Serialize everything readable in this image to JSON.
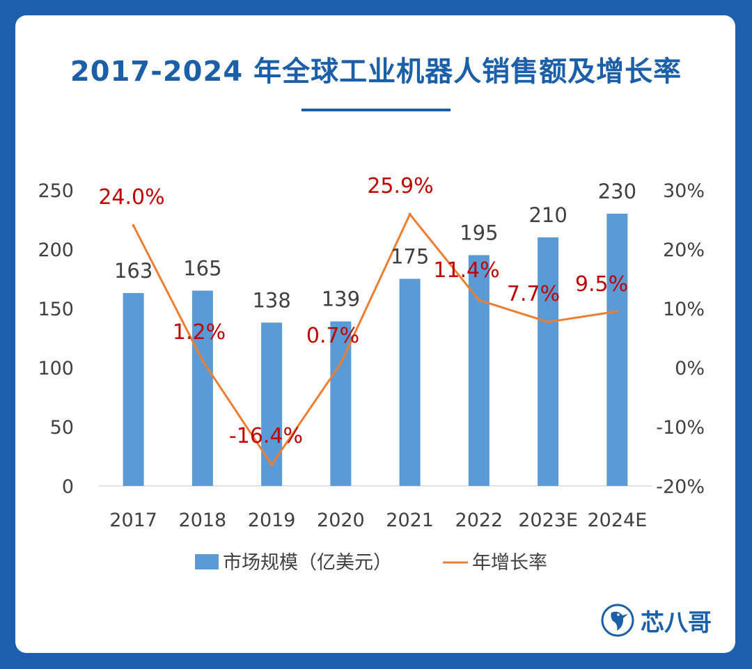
{
  "title": "2017-2024 年全球工业机器人销售额及增长率",
  "brand": {
    "name": "芯八哥",
    "logo_icon": "kingfisher-bird-icon"
  },
  "colors": {
    "bar": "#5b9bd5",
    "line": "#ed7d31",
    "growth_label": "#c00000",
    "title": "#1a5fa8",
    "axis_text": "#404040"
  },
  "chart_data": {
    "type": "bar+line",
    "categories": [
      "2017",
      "2018",
      "2019",
      "2020",
      "2021",
      "2022",
      "2023E",
      "2024E"
    ],
    "series": [
      {
        "name": "市场规模（亿美元）",
        "type": "bar",
        "axis": "left",
        "values": [
          163,
          165,
          138,
          139,
          175,
          195,
          210,
          230
        ],
        "labels": [
          "163",
          "165",
          "138",
          "139",
          "175",
          "195",
          "210",
          "230"
        ]
      },
      {
        "name": "年增长率",
        "type": "line",
        "axis": "right",
        "values": [
          24.0,
          1.2,
          -16.4,
          0.7,
          25.9,
          11.4,
          7.7,
          9.5
        ],
        "labels": [
          "24.0%",
          "1.2%",
          "-16.4%",
          "0.7%",
          "25.9%",
          "11.4%",
          "7.7%",
          "9.5%"
        ]
      }
    ],
    "y_left": {
      "min": 0,
      "max": 250,
      "ticks": [
        0,
        50,
        100,
        150,
        200,
        250
      ],
      "tick_labels": [
        "0",
        "50",
        "100",
        "150",
        "200",
        "250"
      ]
    },
    "y_right": {
      "min": -20,
      "max": 30,
      "ticks": [
        -20,
        -10,
        0,
        10,
        20,
        30
      ],
      "tick_labels": [
        "-20%",
        "-10%",
        "0%",
        "10%",
        "20%",
        "30%"
      ]
    },
    "legend": {
      "position": "bottom",
      "items": [
        "市场规模（亿美元）",
        "年增长率"
      ]
    },
    "grid": false
  }
}
